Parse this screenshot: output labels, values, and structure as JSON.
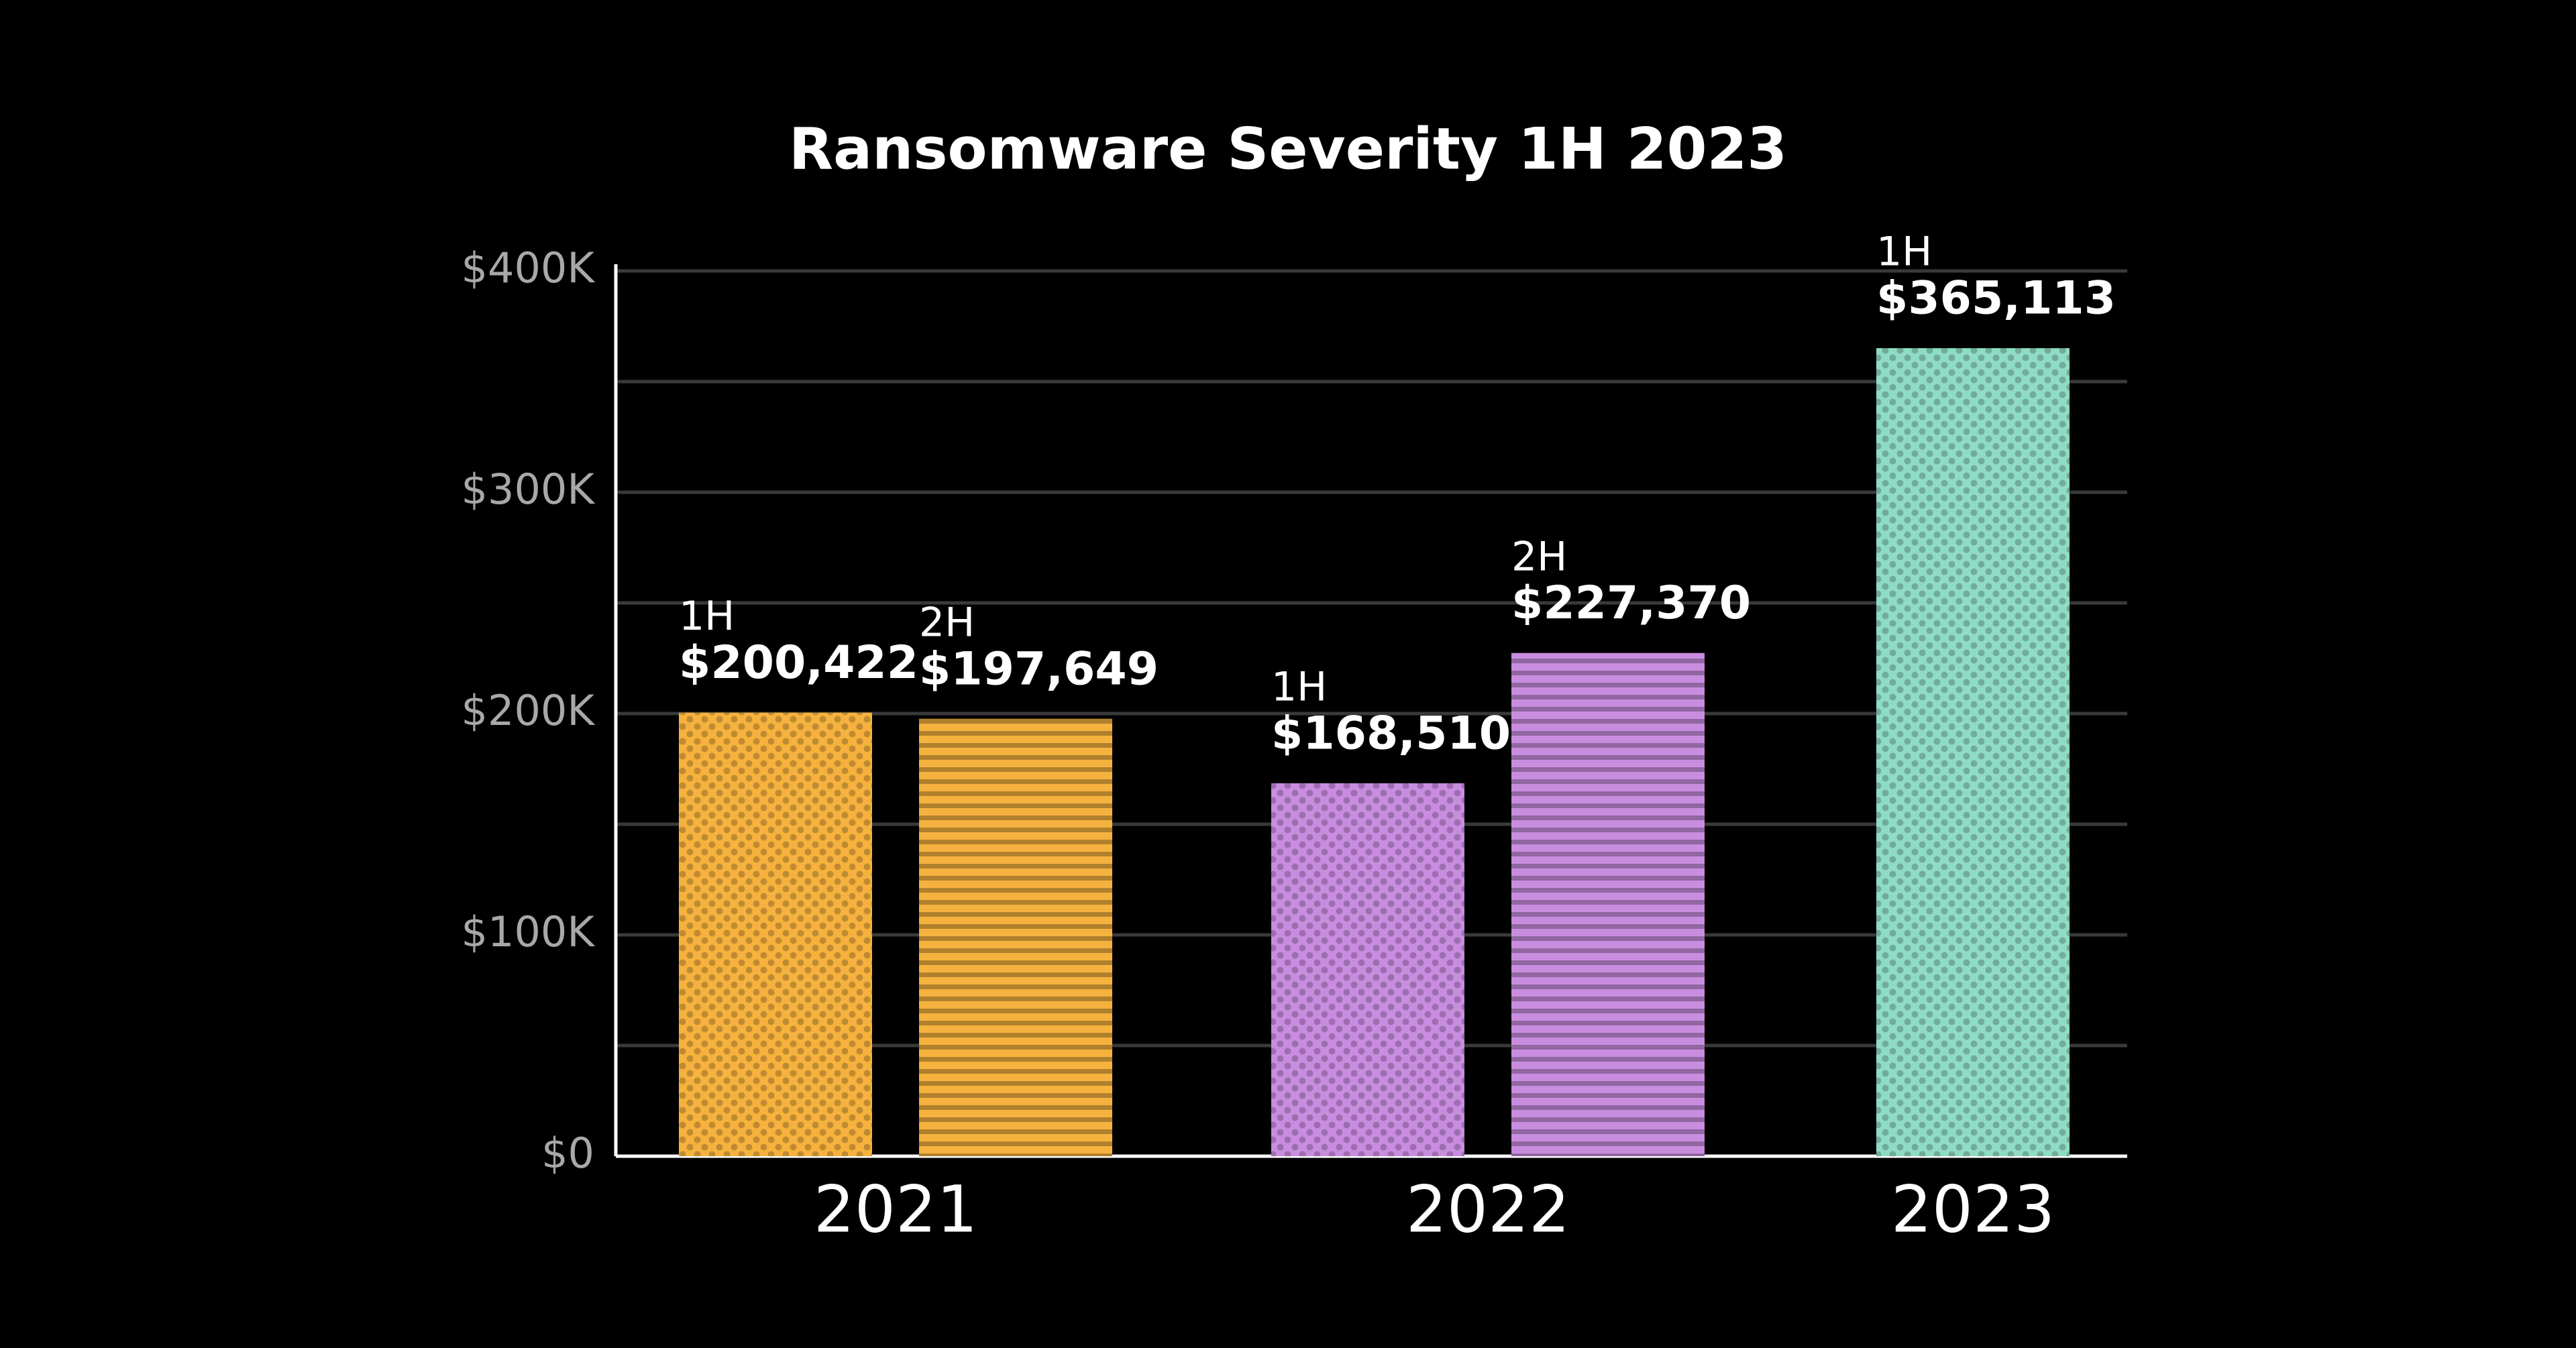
{
  "chart_data": {
    "type": "bar",
    "title": "Ransomware Severity 1H 2023",
    "categories": [
      "2021",
      "2022",
      "2023"
    ],
    "category_colors": [
      "#f6b23e",
      "#c98de0",
      "#8fdcc6"
    ],
    "series": [
      {
        "name": "1H",
        "pattern": "dots",
        "values": [
          200422,
          168510,
          365113
        ],
        "value_labels": [
          "$200,422",
          "$168,510",
          "$365,113"
        ]
      },
      {
        "name": "2H",
        "pattern": "stripes",
        "values": [
          197649,
          227370,
          null
        ],
        "value_labels": [
          "$197,649",
          "$227,370",
          null
        ]
      }
    ],
    "ylim": [
      0,
      400000
    ],
    "yticks": [
      {
        "value": 0,
        "label": "$0"
      },
      {
        "value": 100000,
        "label": "$100K"
      },
      {
        "value": 200000,
        "label": "$200K"
      },
      {
        "value": 300000,
        "label": "$300K"
      },
      {
        "value": 400000,
        "label": "$400K"
      }
    ],
    "minor_yticks": [
      50000,
      150000,
      250000,
      350000
    ],
    "grid": true
  }
}
